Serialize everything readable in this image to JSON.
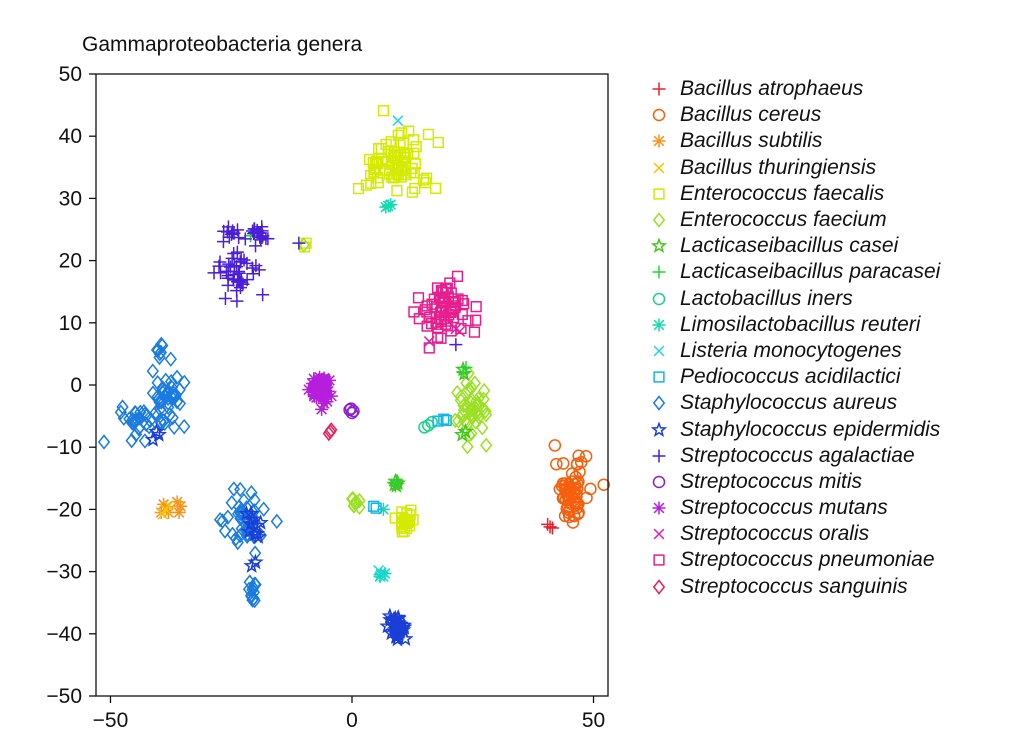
{
  "chart_data": {
    "type": "scatter",
    "title": "Gammaproteobacteria genera",
    "xlabel": "",
    "ylabel": "",
    "xlim": [
      -53,
      53
    ],
    "ylim": [
      -50,
      50
    ],
    "xticks": [
      -50,
      0,
      50
    ],
    "yticks": [
      -50,
      -40,
      -30,
      -20,
      -10,
      0,
      10,
      20,
      30,
      40,
      50
    ],
    "grid": false,
    "legend_position": "right",
    "series": [
      {
        "name": "Bacillus atrophaeus",
        "color": "#e8202a",
        "marker": "plus",
        "points": [
          [
            41.0,
            -22.8
          ],
          [
            40.5,
            -22.4
          ],
          [
            41.5,
            -23.0
          ]
        ]
      },
      {
        "name": "Bacillus cereus",
        "color": "#f4600e",
        "marker": "circle",
        "clusters": [
          {
            "cx": 45.5,
            "cy": -17.0,
            "sx": 1.7,
            "sy": 2.5,
            "n": 60
          }
        ],
        "points": [
          [
            45.0,
            -21.2
          ],
          [
            46.0,
            -21.0
          ]
        ]
      },
      {
        "name": "Bacillus subtilis",
        "color": "#f7941d",
        "marker": "asterisk",
        "points": [
          [
            -39.5,
            -20.5
          ],
          [
            -38.5,
            -19.6
          ],
          [
            -38.0,
            -20.5
          ],
          [
            -39.0,
            -19.2
          ],
          [
            -35.5,
            -19.5
          ],
          [
            -35.8,
            -20.5
          ],
          [
            -36.2,
            -18.8
          ]
        ]
      },
      {
        "name": "Bacillus thuringiensis",
        "color": "#f5c400",
        "marker": "x",
        "points": [
          [
            -38.6,
            -20.0
          ],
          [
            -38.0,
            -19.4
          ],
          [
            -39.2,
            -20.8
          ]
        ]
      },
      {
        "name": "Enterococcus faecalis",
        "color": "#d4ea00",
        "marker": "square",
        "clusters": [
          {
            "cx": 8.5,
            "cy": 35.5,
            "sx": 3.8,
            "sy": 2.6,
            "n": 75
          },
          {
            "cx": 11.2,
            "cy": -21.8,
            "sx": 1.0,
            "sy": 1.1,
            "n": 22
          }
        ],
        "points": [
          [
            -9.5,
            22.8
          ],
          [
            -9.8,
            22.2
          ],
          [
            12.5,
            31.0
          ],
          [
            13.0,
            31.6
          ]
        ]
      },
      {
        "name": "Enterococcus faecium",
        "color": "#9be024",
        "marker": "diamond",
        "clusters": [
          {
            "cx": 25.0,
            "cy": -4.0,
            "sx": 1.6,
            "sy": 2.4,
            "n": 45
          },
          {
            "cx": 0.5,
            "cy": -18.5,
            "sx": 0.6,
            "sy": 0.6,
            "n": 8
          }
        ],
        "points": [
          [
            -10.0,
            22.5
          ]
        ]
      },
      {
        "name": "Lacticaseibacillus casei",
        "color": "#45c61a",
        "marker": "star",
        "points": [
          [
            9.0,
            -15.5
          ],
          [
            9.2,
            -16.2
          ],
          [
            8.8,
            -16.0
          ],
          [
            23.0,
            2.5
          ],
          [
            23.2,
            1.8
          ],
          [
            23.5,
            -7.5
          ],
          [
            22.8,
            -8.0
          ],
          [
            9.5,
            -15.8
          ]
        ]
      },
      {
        "name": "Lacticaseibacillus paracasei",
        "color": "#22d43c",
        "marker": "plus",
        "points": [
          [
            9.0,
            -16.2
          ],
          [
            9.3,
            -15.4
          ],
          [
            23.0,
            2.0
          ],
          [
            23.6,
            2.8
          ],
          [
            -21.0,
            24.0
          ]
        ]
      },
      {
        "name": "Lactobacillus iners",
        "color": "#19d486",
        "marker": "circle",
        "points": [
          [
            15.0,
            -6.8
          ],
          [
            16.5,
            -6.0
          ],
          [
            15.8,
            -6.5
          ]
        ]
      },
      {
        "name": "Limosilactobacillus reuteri",
        "color": "#16d9b0",
        "marker": "asterisk",
        "points": [
          [
            7.5,
            28.8
          ],
          [
            8.0,
            29.0
          ],
          [
            7.0,
            28.6
          ],
          [
            6.5,
            -20.0
          ],
          [
            6.0,
            -30.5
          ],
          [
            6.8,
            -30.3
          ],
          [
            5.8,
            -30.8
          ]
        ]
      },
      {
        "name": "Listeria monocytogenes",
        "color": "#1ad6e0",
        "marker": "x",
        "points": [
          [
            9.5,
            42.5
          ],
          [
            6.0,
            -30.2
          ],
          [
            6.5,
            -30.8
          ],
          [
            5.5,
            -29.8
          ]
        ]
      },
      {
        "name": "Pediococcus acidilactici",
        "color": "#12b6e6",
        "marker": "square",
        "points": [
          [
            19.0,
            -5.5
          ],
          [
            19.5,
            -5.7
          ],
          [
            17.8,
            -5.8
          ],
          [
            4.5,
            -19.5
          ],
          [
            5.0,
            -19.8
          ]
        ]
      },
      {
        "name": "Staphylococcus aureus",
        "color": "#1a7be0",
        "marker": "diamond",
        "clusters": [
          {
            "cx": -38.0,
            "cy": -2.0,
            "sx": 1.8,
            "sy": 2.0,
            "n": 45
          },
          {
            "cx": -44.5,
            "cy": -6.0,
            "sx": 1.6,
            "sy": 1.3,
            "n": 25
          },
          {
            "cx": -39.5,
            "cy": 6.0,
            "sx": 0.6,
            "sy": 0.6,
            "n": 8
          },
          {
            "cx": -22.5,
            "cy": -21.5,
            "sx": 2.2,
            "sy": 2.4,
            "n": 45
          },
          {
            "cx": -20.5,
            "cy": -33.5,
            "sx": 0.9,
            "sy": 0.9,
            "n": 12
          }
        ],
        "points": []
      },
      {
        "name": "Staphylococcus epidermidis",
        "color": "#1a3fd8",
        "marker": "star",
        "clusters": [
          {
            "cx": 9.5,
            "cy": -39.2,
            "sx": 0.9,
            "sy": 0.9,
            "n": 40
          },
          {
            "cx": -20.5,
            "cy": -23.0,
            "sx": 1.2,
            "sy": 1.5,
            "n": 12
          }
        ],
        "points": [
          [
            -40.5,
            -7.5
          ],
          [
            -41.2,
            -8.8
          ],
          [
            -20.0,
            -28.5
          ],
          [
            -40.0,
            -8.0
          ]
        ]
      },
      {
        "name": "Streptococcus agalactiae",
        "color": "#4a1fd6",
        "marker": "plus",
        "clusters": [
          {
            "cx": -24.0,
            "cy": 18.0,
            "sx": 2.0,
            "sy": 2.2,
            "n": 40
          },
          {
            "cx": -24.5,
            "cy": 24.0,
            "sx": 1.2,
            "sy": 0.9,
            "n": 12
          },
          {
            "cx": -19.0,
            "cy": 24.3,
            "sx": 1.0,
            "sy": 0.9,
            "n": 18
          }
        ],
        "points": [
          [
            -11.0,
            22.8
          ],
          [
            -18.5,
            14.5
          ],
          [
            -19.2,
            18.5
          ],
          [
            21.5,
            6.5
          ]
        ]
      },
      {
        "name": "Streptococcus mitis",
        "color": "#8a1fd0",
        "marker": "circle",
        "points": [
          [
            -0.5,
            -4.0
          ],
          [
            0.0,
            -4.5
          ],
          [
            -0.2,
            -3.8
          ],
          [
            0.3,
            -4.2
          ]
        ]
      },
      {
        "name": "Streptococcus mutans",
        "color": "#b51fdc",
        "marker": "asterisk",
        "clusters": [
          {
            "cx": -6.5,
            "cy": -0.8,
            "sx": 1.0,
            "sy": 1.3,
            "n": 55
          }
        ],
        "points": []
      },
      {
        "name": "Streptococcus oralis",
        "color": "#d81fb4",
        "marker": "x",
        "points": [
          [
            16.0,
            7.0
          ],
          [
            21.5,
            9.0
          ],
          [
            22.3,
            8.6
          ]
        ]
      },
      {
        "name": "Streptococcus pneumoniae",
        "color": "#e61f8e",
        "marker": "square",
        "clusters": [
          {
            "cx": 19.5,
            "cy": 12.5,
            "sx": 2.7,
            "sy": 2.5,
            "n": 65
          }
        ],
        "points": []
      },
      {
        "name": "Streptococcus sanguinis",
        "color": "#e81f5a",
        "marker": "diamond",
        "points": [
          [
            -4.5,
            -7.5
          ],
          [
            -4.8,
            -7.8
          ],
          [
            -4.3,
            -7.2
          ]
        ]
      }
    ]
  }
}
